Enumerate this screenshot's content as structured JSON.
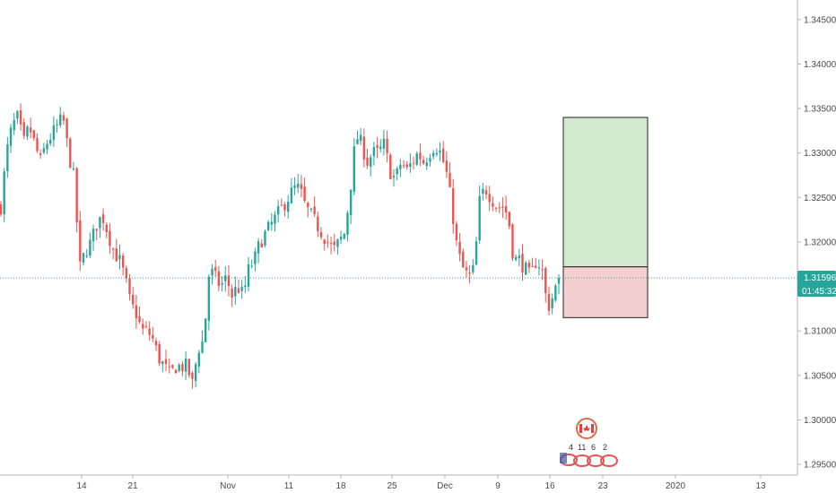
{
  "chart_data": {
    "type": "candlestick",
    "price_axis": {
      "ticks": [
        "1.34500",
        "1.34000",
        "1.33500",
        "1.33000",
        "1.32500",
        "1.32000",
        "1.31500",
        "1.31000",
        "1.30500",
        "1.30000",
        "1.29500"
      ],
      "tick_values": [
        1.345,
        1.34,
        1.335,
        1.33,
        1.325,
        1.32,
        1.315,
        1.31,
        1.305,
        1.3,
        1.295
      ],
      "range": [
        1.2938,
        1.3472
      ]
    },
    "time_axis": {
      "labels": [
        "14",
        "21",
        "Nov",
        "11",
        "18",
        "25",
        "Dec",
        "9",
        "16",
        "23",
        "2020",
        "13"
      ]
    },
    "last_price": {
      "value": 1.31596,
      "label": "1.31596",
      "countdown": "01:45:32",
      "line_color": "#26a69a",
      "tag_color": "#26a69a"
    },
    "position_tool": {
      "entry": 1.3172,
      "target": 1.334,
      "stop": 1.3115,
      "profit_color": "#d4ead0",
      "loss_color": "#f4cfcf"
    },
    "up_color": "#26a69a",
    "down_color": "#ef5350",
    "grid": false,
    "close_path": [
      1.324,
      1.33,
      1.333,
      1.334,
      1.331,
      1.333,
      1.331,
      1.329,
      1.331,
      1.332,
      1.333,
      1.334,
      1.33,
      1.327,
      1.317,
      1.319,
      1.32,
      1.322,
      1.323,
      1.321,
      1.319,
      1.318,
      1.316,
      1.313,
      1.312,
      1.31,
      1.31,
      1.309,
      1.307,
      1.306,
      1.305,
      1.306,
      1.306,
      1.306,
      1.304,
      1.308,
      1.309,
      1.317,
      1.316,
      1.315,
      1.316,
      1.314,
      1.315,
      1.314,
      1.317,
      1.318,
      1.32,
      1.321,
      1.322,
      1.323,
      1.324,
      1.325,
      1.326,
      1.326,
      1.324,
      1.323,
      1.322,
      1.321,
      1.32,
      1.319,
      1.32,
      1.321,
      1.326,
      1.332,
      1.331,
      1.329,
      1.33,
      1.33,
      1.331,
      1.328,
      1.327,
      1.329,
      1.328,
      1.329,
      1.33,
      1.329,
      1.33,
      1.331,
      1.33,
      1.328,
      1.324,
      1.319,
      1.317,
      1.316,
      1.317,
      1.325,
      1.326,
      1.325,
      1.324,
      1.324,
      1.323,
      1.318,
      1.318,
      1.317,
      1.316,
      1.318,
      1.317,
      1.3125,
      1.314,
      1.31596
    ]
  },
  "watermark": {
    "badges": [
      "4",
      "11",
      "6",
      "2"
    ]
  }
}
